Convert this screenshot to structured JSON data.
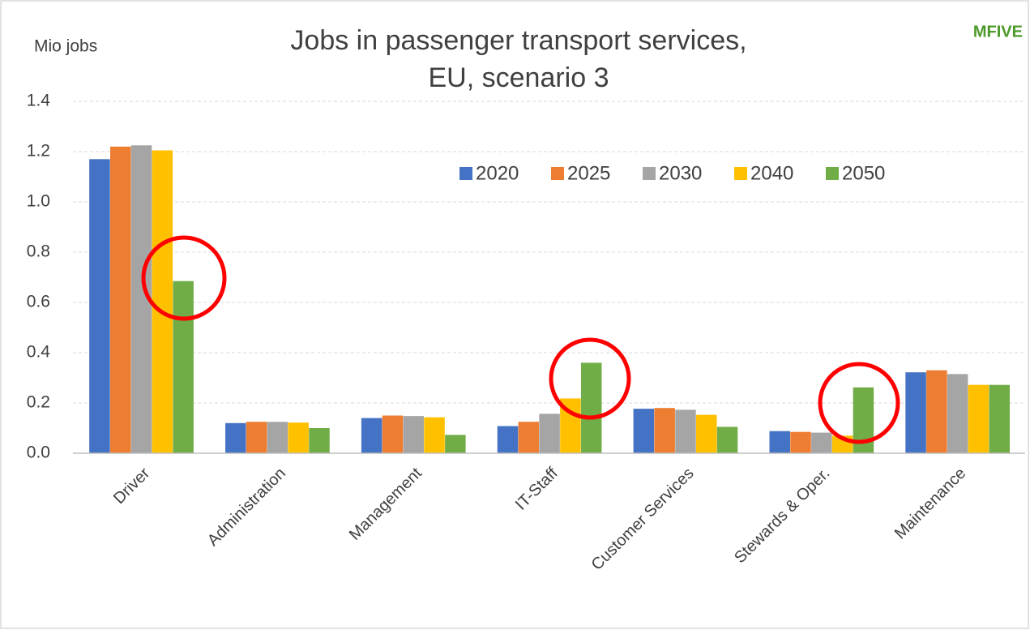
{
  "chart_data": {
    "type": "bar",
    "title": "Jobs in passenger transport services,",
    "subtitle": "EU, scenario 3",
    "y_axis_label": "Mio jobs",
    "logo": "MFIVE",
    "categories": [
      "Driver",
      "Administration",
      "Management",
      "IT-Staff",
      "Customer Services",
      "Stewards & Oper.",
      "Maintenance"
    ],
    "series": [
      {
        "name": "2020",
        "color": "#4472c4",
        "values": [
          1.17,
          0.12,
          0.14,
          0.108,
          0.177,
          0.088,
          0.322
        ]
      },
      {
        "name": "2025",
        "color": "#ed7d31",
        "values": [
          1.22,
          0.125,
          0.15,
          0.125,
          0.18,
          0.085,
          0.33
        ]
      },
      {
        "name": "2030",
        "color": "#a5a5a5",
        "values": [
          1.225,
          0.125,
          0.148,
          0.157,
          0.173,
          0.082,
          0.315
        ]
      },
      {
        "name": "2040",
        "color": "#ffc000",
        "values": [
          1.205,
          0.122,
          0.143,
          0.218,
          0.153,
          0.07,
          0.272
        ]
      },
      {
        "name": "2050",
        "color": "#70ad47",
        "values": [
          0.685,
          0.1,
          0.073,
          0.36,
          0.105,
          0.262,
          0.272
        ]
      }
    ],
    "ylim": [
      0,
      1.4
    ],
    "yticks": [
      {
        "value": 0,
        "label": "0.0"
      },
      0.2,
      0.4,
      0.6,
      0.8,
      {
        "value": 1,
        "label": "1.0"
      },
      1.2,
      1.4
    ],
    "grid": true,
    "legend": "top-right"
  }
}
